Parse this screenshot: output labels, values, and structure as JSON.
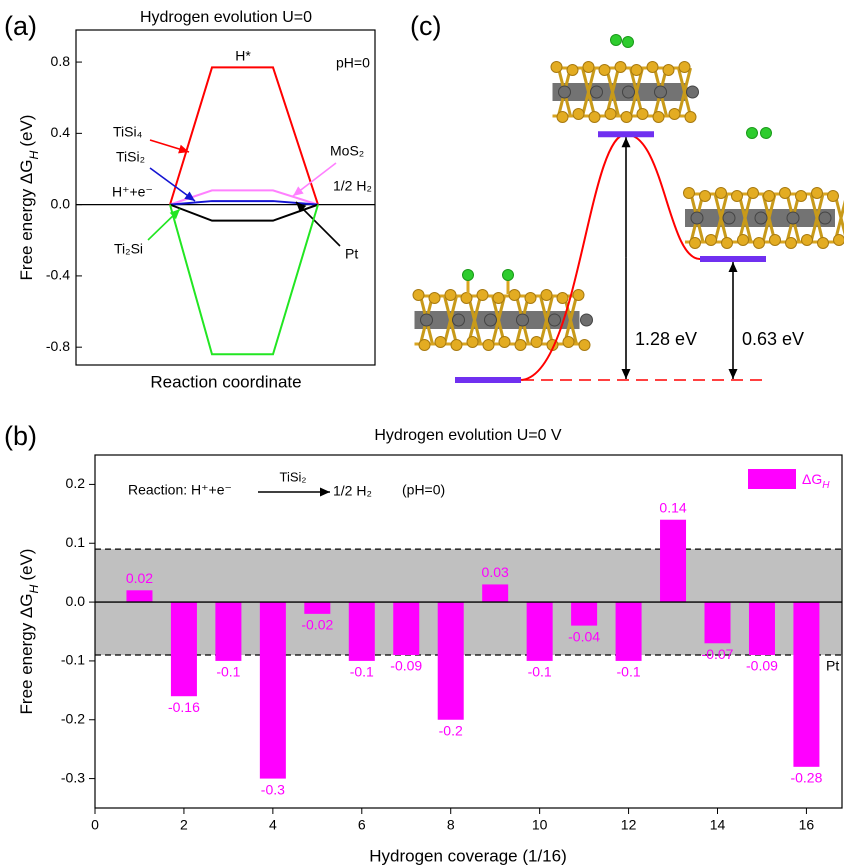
{
  "chart_data": [
    {
      "type": "energy_diagram",
      "panel_label": "(a)",
      "title": "Hydrogen evolution U=0",
      "annotation": "pH=0",
      "x_label": "Reaction coordinate",
      "y_label": [
        "Free energy ΔG",
        "H",
        "(eV)"
      ],
      "categories": [
        "H⁺+e⁻",
        "H*",
        "1/2 H₂"
      ],
      "series": [
        {
          "name": "TiSi₄",
          "color": "#ff0000",
          "values": [
            0,
            0.77,
            0
          ]
        },
        {
          "name": "MoS₂",
          "color": "#ff80ff",
          "values": [
            0,
            0.08,
            0
          ]
        },
        {
          "name": "TiSi₂",
          "color": "#1414d2",
          "values": [
            0,
            0.02,
            0
          ]
        },
        {
          "name": "Pt",
          "color": "#000000",
          "values": [
            0,
            -0.09,
            0
          ]
        },
        {
          "name": "Ti₂Si",
          "color": "#22e622",
          "values": [
            0,
            -0.84,
            0
          ]
        }
      ],
      "ylim": [
        -0.9,
        0.98
      ],
      "yticks": [
        -0.8,
        -0.4,
        {
          "value": 0,
          "label": "0.0"
        },
        0.4,
        0.8
      ]
    },
    {
      "type": "bar",
      "panel_label": "(b)",
      "title": "Hydrogen evolution U=0 V",
      "x_label": "Hydrogen coverage (1/16)",
      "y_label": [
        "Free energy ΔG",
        "H",
        "(eV)"
      ],
      "reaction": [
        "Reaction: H⁺+e⁻",
        "TiSi₂",
        "1/2 H₂",
        "(pH=0)"
      ],
      "x": [
        1,
        2,
        3,
        4,
        5,
        6,
        7,
        8,
        9,
        10,
        11,
        12,
        13,
        14,
        15,
        16
      ],
      "series": [
        {
          "name": [
            "ΔG",
            "H"
          ],
          "color": "#ff00ff",
          "values": [
            0.02,
            -0.16,
            -0.1,
            -0.3,
            -0.02,
            -0.1,
            -0.09,
            -0.2,
            0.03,
            -0.1,
            -0.04,
            -0.1,
            0.14,
            -0.07,
            -0.09,
            -0.28
          ]
        }
      ],
      "band": [
        -0.09,
        0.09
      ],
      "band_label": "Pt",
      "band_color": "#c0c0c0",
      "xlim": [
        0,
        16.8
      ],
      "xticks": [
        0,
        2,
        4,
        6,
        8,
        10,
        12,
        14,
        16
      ],
      "ylim": [
        -0.35,
        0.25
      ],
      "yticks": [
        -0.3,
        -0.2,
        -0.1,
        {
          "value": 0,
          "label": "0.0"
        },
        0.1,
        0.2
      ],
      "legend": "upper right"
    },
    {
      "type": "energy_profile",
      "panel_label": "(c)",
      "values": [
        0,
        1.28,
        0.63
      ],
      "value_labels": [
        null,
        "1.28 eV",
        "0.63 eV"
      ],
      "level_color": "#7030f0",
      "curve_color": "#ff0000"
    }
  ]
}
